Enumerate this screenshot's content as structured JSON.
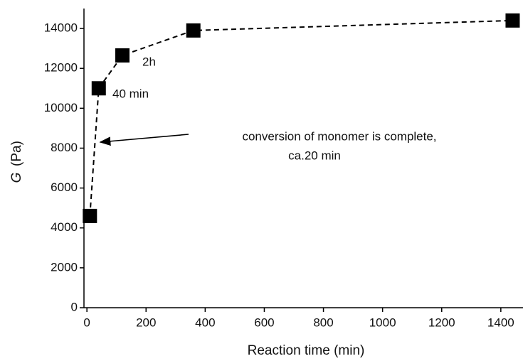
{
  "chart_data": {
    "type": "line",
    "xlabel": "Reaction time  (min)",
    "ylabel_symbol": "G",
    "ylabel_unit": "(Pa)",
    "x": [
      10,
      40,
      120,
      360,
      1440
    ],
    "series": [
      {
        "color": "#000000",
        "values": [
          4600,
          11000,
          12650,
          13900,
          14400
        ]
      }
    ],
    "xlim": [
      -10,
      1475
    ],
    "ylim": [
      0,
      15000
    ],
    "xticks": [
      0,
      200,
      400,
      600,
      800,
      1000,
      1200,
      1400
    ],
    "yticks": [
      0,
      2000,
      4000,
      6000,
      8000,
      10000,
      12000,
      14000
    ],
    "annotations": [
      "2h",
      "40 min",
      "conversion of monomer is complete,",
      "ca.20 min"
    ]
  }
}
